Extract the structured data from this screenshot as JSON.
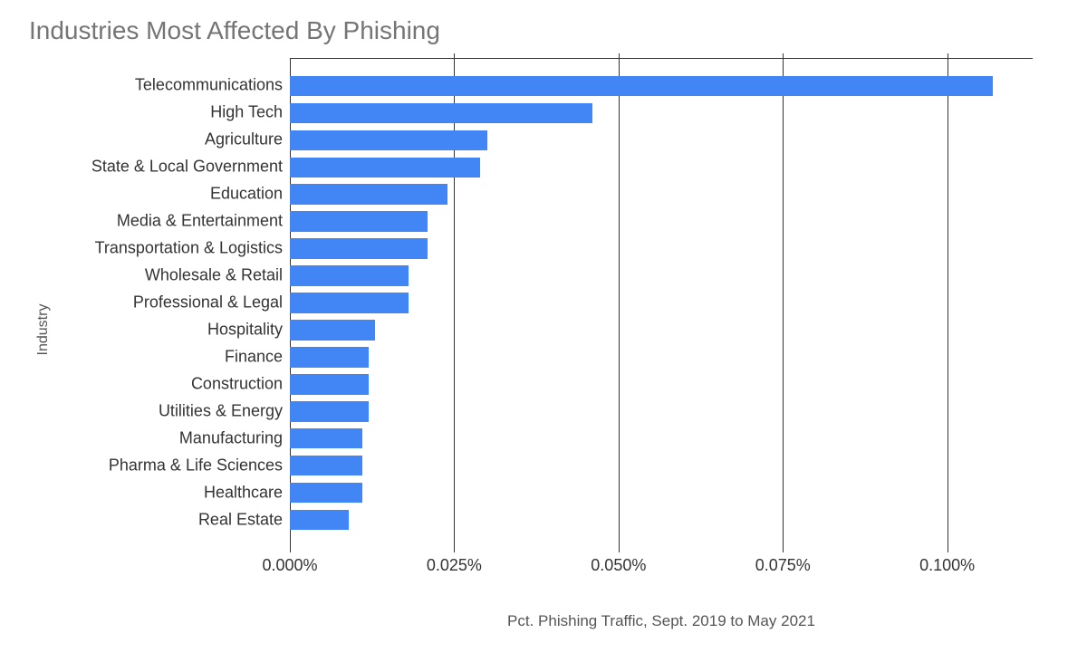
{
  "chart": {
    "type": "bar-horizontal",
    "title": "Industries Most Affected By Phishing",
    "title_color": "#757575",
    "title_fontsize": 28,
    "y_axis_title": "Industry",
    "x_axis_title": "Pct. Phishing Traffic, Sept. 2019 to May 2021",
    "axis_title_color": "#555555",
    "label_color": "#333333",
    "label_fontsize": 18,
    "background_color": "#ffffff",
    "grid_color": "#333333",
    "bar_color": "#4285f4",
    "bar_gap_ratio": 0.25,
    "x_min": 0.0,
    "x_max": 0.113,
    "x_ticks": [
      {
        "value": 0.0,
        "label": "0.000%"
      },
      {
        "value": 0.025,
        "label": "0.025%"
      },
      {
        "value": 0.05,
        "label": "0.050%"
      },
      {
        "value": 0.075,
        "label": "0.075%"
      },
      {
        "value": 0.1,
        "label": "0.100%"
      }
    ],
    "categories": [
      {
        "label": "Telecommunications",
        "value": 0.107
      },
      {
        "label": "High Tech",
        "value": 0.046
      },
      {
        "label": "Agriculture",
        "value": 0.03
      },
      {
        "label": "State & Local Government",
        "value": 0.029
      },
      {
        "label": "Education",
        "value": 0.024
      },
      {
        "label": "Media & Entertainment",
        "value": 0.021
      },
      {
        "label": "Transportation & Logistics",
        "value": 0.021
      },
      {
        "label": "Wholesale & Retail",
        "value": 0.018
      },
      {
        "label": "Professional & Legal",
        "value": 0.018
      },
      {
        "label": "Hospitality",
        "value": 0.013
      },
      {
        "label": "Finance",
        "value": 0.012
      },
      {
        "label": "Construction",
        "value": 0.012
      },
      {
        "label": "Utilities & Energy",
        "value": 0.012
      },
      {
        "label": "Manufacturing",
        "value": 0.011
      },
      {
        "label": "Pharma & Life Sciences",
        "value": 0.011
      },
      {
        "label": "Healthcare",
        "value": 0.011
      },
      {
        "label": "Real Estate",
        "value": 0.009
      }
    ]
  }
}
